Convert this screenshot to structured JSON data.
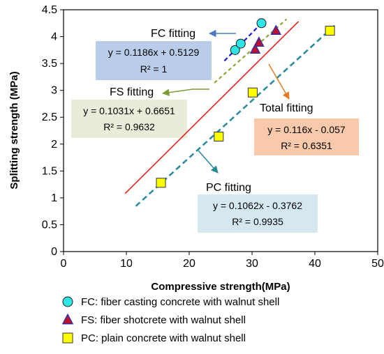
{
  "chart_data": {
    "type": "scatter",
    "title": "",
    "xlabel": "Compressive strength(MPa)",
    "ylabel": "Splitting strength (MPa)",
    "xlim": [
      0,
      50
    ],
    "ylim": [
      0,
      4.5
    ],
    "xticks": [
      "0",
      "10",
      "20",
      "30",
      "40",
      "50"
    ],
    "yticks": [
      "0",
      "0.5",
      "1",
      "1.5",
      "2",
      "2.5",
      "3",
      "3.5",
      "4",
      "4.5"
    ],
    "grid": false,
    "legend_position": "bottom",
    "series": [
      {
        "name": "FC: fiber casting concrete with walnut shell",
        "marker": "circle",
        "color": "#2ee6e6",
        "x": [
          27.3,
          28.2,
          31.5
        ],
        "y": [
          3.75,
          3.87,
          4.25
        ]
      },
      {
        "name": "FS: fiber shotcrete with walnut shell",
        "marker": "triangle",
        "color": "#c0112a",
        "x": [
          30.5,
          31.1,
          33.8
        ],
        "y": [
          3.76,
          3.89,
          4.11
        ]
      },
      {
        "name": "PC: plain concrete with walnut shell",
        "marker": "square",
        "color": "#ffff00",
        "x": [
          15.5,
          24.7,
          30.1,
          42.4
        ],
        "y": [
          1.28,
          2.14,
          2.96,
          4.11
        ]
      }
    ],
    "fits": [
      {
        "id": "fc",
        "label": "FC fitting",
        "equation": "y = 0.1186x + 0.5129",
        "r2": "R² = 1",
        "color": "#1a1adb",
        "box_color": "#b9cdea",
        "line_x": [
          25.6,
          31.8
        ]
      },
      {
        "id": "fs",
        "label": "FS fitting",
        "equation": "y = 0.1031x + 0.6651",
        "r2": "R² = 0.9632",
        "color": "#8aa83a",
        "box_color": "#e8ecd9",
        "line_x": [
          24,
          35.5
        ]
      },
      {
        "id": "total",
        "label": "Total fitting",
        "equation": "y = 0.116x - 0.057",
        "r2": "R² = 0.6351",
        "color": "#e8201c",
        "box_color": "#f8c9aa",
        "line_x": [
          9.8,
          37.4
        ]
      },
      {
        "id": "pc",
        "label": "PC fitting",
        "equation": "y = 0.1062x - 0.3762",
        "r2": "R² = 0.9935",
        "color": "#2e8a9e",
        "box_color": "#d5e8ef",
        "line_x": [
          11.5,
          43.5
        ]
      }
    ]
  }
}
